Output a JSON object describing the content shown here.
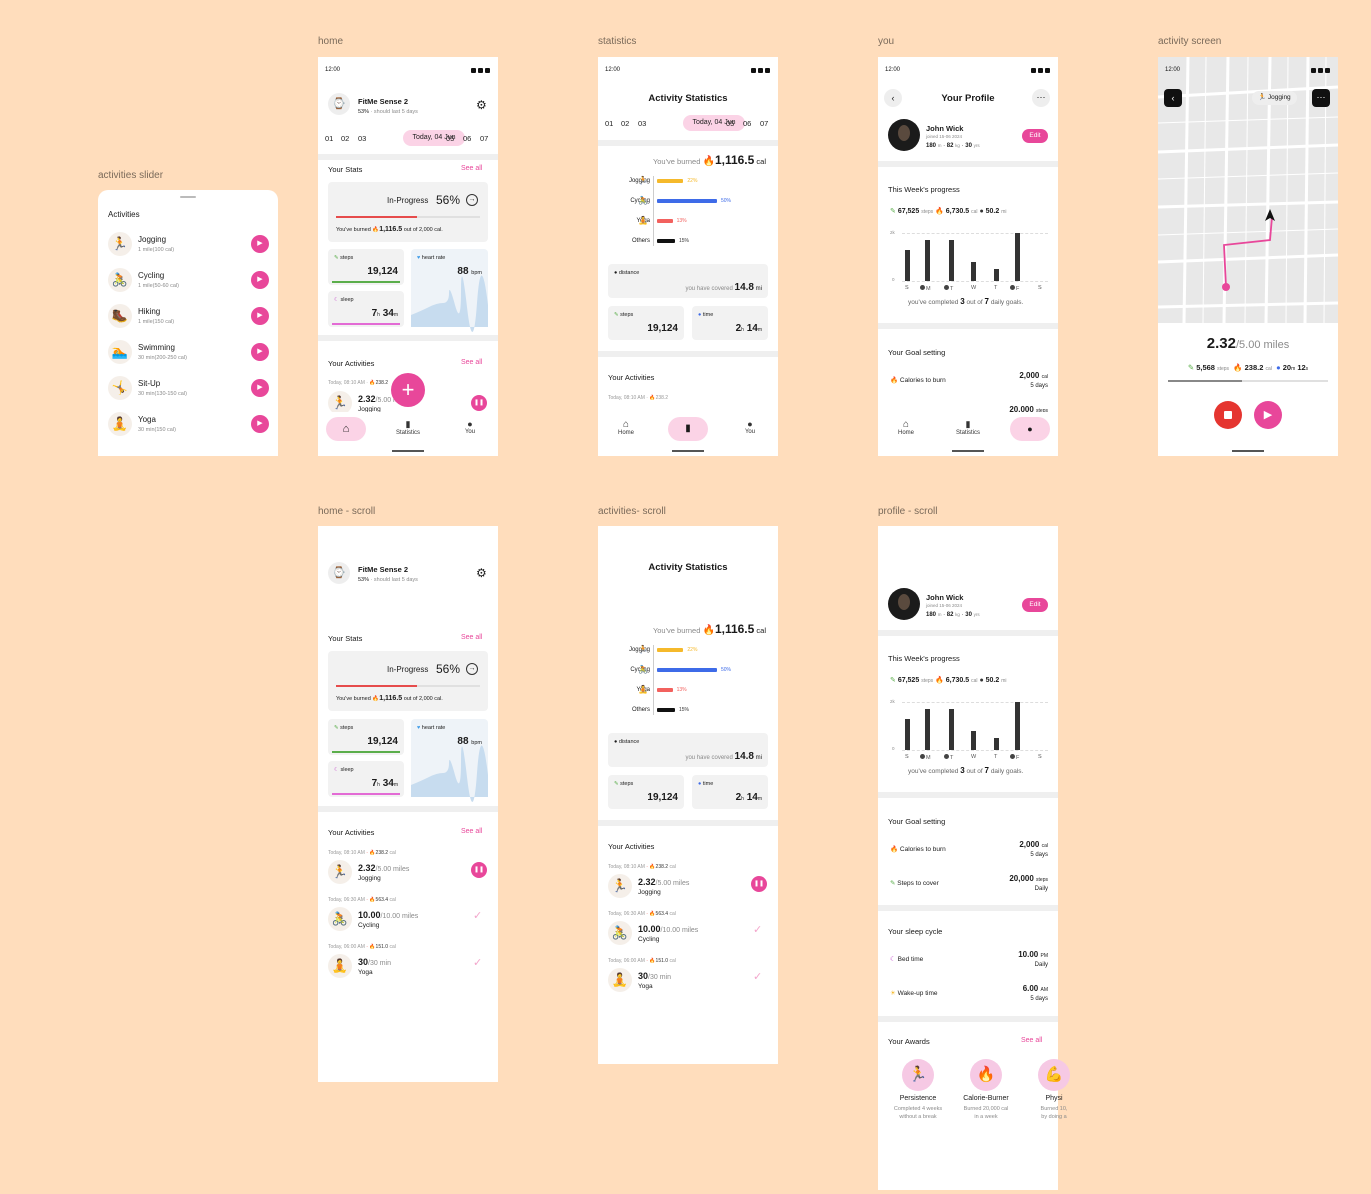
{
  "colors": {
    "background": "#FFDDBC",
    "accent": "#E8479A",
    "accent_light": "#FBD3E6",
    "steps_green": "#5BAE4B",
    "cycling_blue": "#3E6BE8",
    "jogging_yellow": "#F5B92B",
    "yoga_red": "#F2615E",
    "stop_red": "#E53530"
  },
  "labels": {
    "slider": "activities slider",
    "home": "home",
    "statistics": "statistics",
    "you": "you",
    "activity_screen": "activity screen",
    "home_scroll": "home - scroll",
    "activities_scroll": "activities- scroll",
    "profile_scroll": "profile - scroll"
  },
  "status_time": "12:00",
  "slider": {
    "title": "Activities",
    "items": [
      {
        "name": "Jogging",
        "sub": "1 mile(100 cal)",
        "icon": "runner-icon"
      },
      {
        "name": "Cycling",
        "sub": "1 mile(50-60 cal)",
        "icon": "cyclist-icon"
      },
      {
        "name": "Hiking",
        "sub": "1 mile(150 cal)",
        "icon": "hiker-icon"
      },
      {
        "name": "Swimming",
        "sub": "30 min(200-250 cal)",
        "icon": "swimmer-icon"
      },
      {
        "name": "Sit-Up",
        "sub": "30 min(130-150 cal)",
        "icon": "situp-icon"
      },
      {
        "name": "Yoga",
        "sub": "30 min(150 cal)",
        "icon": "yoga-icon"
      }
    ]
  },
  "device": {
    "name": "FitMe Sense 2",
    "battery": "53%",
    "battery_note": "· should last 5 days"
  },
  "dates": [
    "01",
    "02",
    "03",
    "Today, 04 Jun",
    "05",
    "06",
    "07"
  ],
  "stats": {
    "title": "Your Stats",
    "see_all": "See all",
    "progress_label": "In-Progress",
    "progress_pct": "56%",
    "progress_value": 0.56,
    "burned_prefix": "You've burned",
    "burned_value": "1,116.5",
    "burned_suffix": "out of 2,000 cal.",
    "steps_label": "steps",
    "steps_value": "19,124",
    "heart_label": "heart rate",
    "heart_value": "88",
    "heart_unit": "bpm",
    "sleep_label": "sleep",
    "sleep_h": "7",
    "sleep_h_unit": "h",
    "sleep_m": "34",
    "sleep_m_unit": "m"
  },
  "activities": {
    "title": "Your Activities",
    "see_all": "See all",
    "items": [
      {
        "meta": "Today, 08:10 AM",
        "cal": "238.2",
        "cal_unit": "cal",
        "value": "2.32",
        "total": "/5.00 miles",
        "name": "Jogging",
        "state": "pause"
      },
      {
        "meta": "Today, 06:30 AM",
        "cal": "563.4",
        "cal_unit": "cal",
        "value": "10.00",
        "total": "/10.00 miles",
        "name": "Cycling",
        "state": "done"
      },
      {
        "meta": "Today, 06:00 AM",
        "cal": "151.0",
        "cal_unit": "cal",
        "value": "30",
        "total": "/30 min",
        "name": "Yoga",
        "state": "done"
      }
    ]
  },
  "nav": {
    "home": "Home",
    "stats": "Statistics",
    "you": "You"
  },
  "statistics": {
    "title": "Activity Statistics",
    "burned_prefix": "You've burned",
    "burned_value": "1,116.5",
    "burned_unit": "cal",
    "breakdown": [
      {
        "name": "Jogging",
        "pct": "22%",
        "value": 22,
        "color": "#F5B92B"
      },
      {
        "name": "Cycling",
        "pct": "50%",
        "value": 50,
        "color": "#3E6BE8"
      },
      {
        "name": "Yoga",
        "pct": "13%",
        "value": 13,
        "color": "#F2615E"
      },
      {
        "name": "Others",
        "pct": "15%",
        "value": 15,
        "color": "#111111"
      }
    ],
    "distance_label": "distance",
    "distance_prefix": "you have covered",
    "distance_value": "14.8",
    "distance_unit": "mi",
    "steps_label": "steps",
    "steps_value": "19,124",
    "time_label": "time",
    "time_h": "2",
    "time_h_unit": "h",
    "time_m": "14",
    "time_m_unit": "m"
  },
  "profile": {
    "title": "Your Profile",
    "name": "John Wick",
    "joined": "joined 15-06 2024",
    "height": "180",
    "height_unit": "m",
    "weight": "82",
    "weight_unit": "kg",
    "age": "30",
    "age_unit": "yrs",
    "edit": "Edit",
    "week_title": "This Week's progress",
    "week_steps": "67,525",
    "week_steps_unit": "steps",
    "week_cal": "6,730.5",
    "week_cal_unit": "cal",
    "week_mi": "50.2",
    "week_mi_unit": "mi",
    "y_top": "2k",
    "y_zero": "0",
    "days": [
      "S",
      "M",
      "T",
      "W",
      "T",
      "F",
      "S"
    ],
    "day_values": [
      1.3,
      1.7,
      1.7,
      0.8,
      0.5,
      2.0,
      0
    ],
    "day_done": [
      false,
      true,
      true,
      false,
      false,
      true,
      false
    ],
    "goals_done_prefix": "you've completed",
    "goals_done": "3",
    "goals_mid": "out of",
    "goals_total": "7",
    "goals_suffix": "daily goals.",
    "goal_title": "Your Goal setting",
    "goal1_label": "Calories to burn",
    "goal1_value": "2,000",
    "goal1_unit": "cal",
    "goal1_sub": "5 days",
    "goal2_label": "Steps to cover",
    "goal2_value": "20,000",
    "goal2_unit": "steps",
    "goal2_sub": "Daily",
    "sleep_title": "Your sleep cycle",
    "bed_label": "Bed time",
    "bed_value": "10.00",
    "bed_unit": "PM",
    "bed_sub": "Daily",
    "wake_label": "Wake-up time",
    "wake_value": "6.00",
    "wake_unit": "AM",
    "wake_sub": "5 days",
    "awards_title": "Your Awards",
    "awards_see_all": "See all",
    "awards": [
      {
        "name": "Persistence",
        "desc1": "Completed 4 weeks",
        "desc2": "without a break"
      },
      {
        "name": "Calorie-Burner",
        "desc1": "Burned 20,000 cal",
        "desc2": "in a week"
      },
      {
        "name": "Physi",
        "desc1": "Burned 10,",
        "desc2": "by doing a"
      }
    ]
  },
  "activity_screen": {
    "chip": "Jogging",
    "value": "2.32",
    "total": "/5.00 miles",
    "steps": "5,568",
    "steps_unit": "steps",
    "cal": "238.2",
    "cal_unit": "cal",
    "time_m": "20",
    "time_m_unit": "m",
    "time_s": "12",
    "time_s_unit": "s",
    "progress_value": 0.46
  }
}
